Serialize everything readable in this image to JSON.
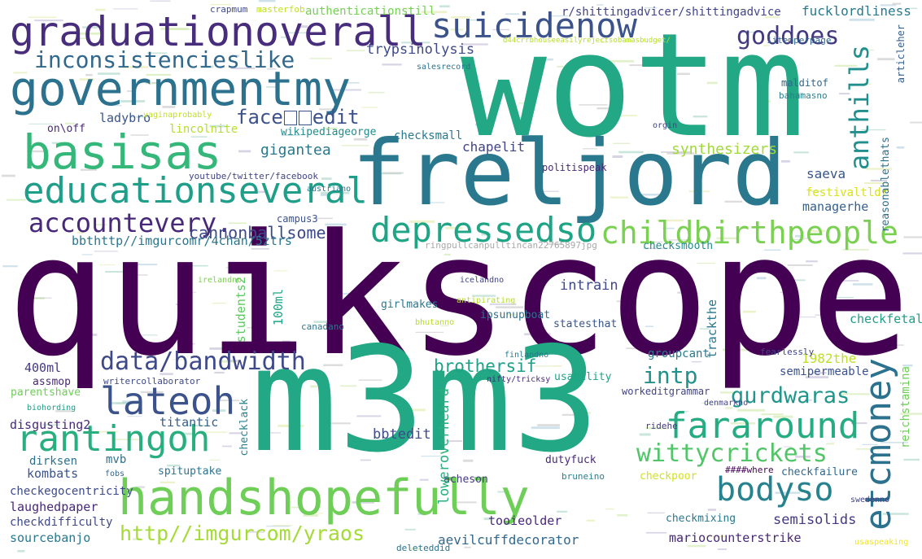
{
  "words": [
    {
      "id": "quikscope",
      "text": "quikscope",
      "color": "#440154"
    },
    {
      "id": "wotm",
      "text": "wotm",
      "color": "#22a884"
    },
    {
      "id": "m3m3",
      "text": "m3m3",
      "color": "#22a884"
    },
    {
      "id": "freljord",
      "text": "freljord",
      "color": "#2a788e"
    },
    {
      "id": "governmentmy",
      "text": "governmentmy",
      "color": "#2c728e"
    },
    {
      "id": "graduationoverall",
      "text": "graduationoverall",
      "color": "#472d7b"
    },
    {
      "id": "basisas",
      "text": "basisas",
      "color": "#35b779"
    },
    {
      "id": "handshopefully",
      "text": "handshopefully",
      "color": "#6ece58"
    },
    {
      "id": "educationseveral",
      "text": "educationseveral",
      "color": "#1f9e89"
    },
    {
      "id": "suicidenow",
      "text": "suicidenow",
      "color": "#3b528b"
    },
    {
      "id": "inconsistencieslike",
      "text": "inconsistencieslike",
      "color": "#31688e"
    },
    {
      "id": "accountevery",
      "text": "accountevery.",
      "color": "#482878"
    },
    {
      "id": "childbirthpeople",
      "text": "childbirthpeople",
      "color": "#7ad151"
    },
    {
      "id": "depressedso",
      "text": "depressedso",
      "color": "#20a486"
    },
    {
      "id": "fararound",
      "text": "fararound",
      "color": "#25ac82"
    },
    {
      "id": "lateoh",
      "text": "lateoh",
      "color": "#3b528b"
    },
    {
      "id": "rantingoh",
      "text": "rantingoh",
      "color": "#29af7f"
    },
    {
      "id": "wittycrickets",
      "text": "wittycrickets",
      "color": "#52c569"
    },
    {
      "id": "bodyso",
      "text": "bodyso",
      "color": "#26828e"
    },
    {
      "id": "etcmoney",
      "text": "etcmoney",
      "color": "#2c728e"
    },
    {
      "id": "databandwidth",
      "text": "data/bandwidth",
      "color": "#3e4989"
    },
    {
      "id": "anthills",
      "text": "anthills",
      "color": "#218f8d"
    },
    {
      "id": "goddoes",
      "text": "goddoes",
      "color": "#443983"
    },
    {
      "id": "faceedit",
      "text": "face\u0000\u0000edit",
      "color": "#3b528b"
    },
    {
      "id": "imgurlink",
      "text": "http//imgurcom/yraos",
      "color": "#a5db36"
    },
    {
      "id": "gurdwaras",
      "text": "gurdwaras",
      "color": "#1f968b"
    },
    {
      "id": "intp",
      "text": "intp",
      "color": "#21918c"
    },
    {
      "id": "brothersif",
      "text": "brothersif",
      "color": "#1fa188"
    },
    {
      "id": "cannonballsome",
      "text": "cannonballsome",
      "color": "#3e4989"
    },
    {
      "id": "gigantea",
      "text": "gigantea",
      "color": "#2a788e"
    },
    {
      "id": "bbthttp",
      "text": "bbthttp//imgurcomr/4chan/5ztrs",
      "color": "#2a768e"
    },
    {
      "id": "synthesizers",
      "text": "synthesizers",
      "color": "#a0da39"
    },
    {
      "id": "trypsinolysis",
      "text": "trypsinolysis",
      "color": "#3e4989"
    },
    {
      "id": "shittingadvice",
      "text": "r/shittingadvicer/shittingadvice",
      "color": "#414487"
    },
    {
      "id": "fucklordliness",
      "text": "fucklordliness",
      "color": "#2a788e"
    },
    {
      "id": "authenticationstill",
      "text": "authenticationstill",
      "color": "#75d054"
    },
    {
      "id": "ladybro",
      "text": "ladybro",
      "color": "#3b528b"
    },
    {
      "id": "lincolnite",
      "text": "lincolnite",
      "color": "#b5de2b"
    },
    {
      "id": "onoff",
      "text": "on\\off",
      "color": "#482878"
    },
    {
      "id": "wikipediageorge",
      "text": "wikipediageorge",
      "color": "#228c8d"
    },
    {
      "id": "checksmall",
      "text": "checksmall",
      "color": "#2a788e"
    },
    {
      "id": "chapelit",
      "text": "chapelit",
      "color": "#414487"
    },
    {
      "id": "saeva",
      "text": "saeva",
      "color": "#39558c"
    },
    {
      "id": "managerhe",
      "text": "managerhe",
      "color": "#355f8d"
    },
    {
      "id": "festivaltldr",
      "text": "festivaltldr",
      "color": "#d8e219"
    },
    {
      "id": "reasonablethats",
      "text": "reasonablethats",
      "color": "#2c728e"
    },
    {
      "id": "ringpull",
      "text": "ringpullcanpulltincan22765897jpg",
      "color": "#a8a8a8"
    },
    {
      "id": "checksmooth",
      "text": "checksmooth",
      "color": "#228c8d"
    },
    {
      "id": "malditof",
      "text": "malditof",
      "color": "#31688e"
    },
    {
      "id": "bahamasno",
      "text": "bahamasno",
      "color": "#26828e"
    },
    {
      "id": "1itemperpage",
      "text": "1itemperpage",
      "color": "#31688e"
    },
    {
      "id": "salesrecord",
      "text": "salesrecord",
      "color": "#2c728e"
    },
    {
      "id": "articleher",
      "text": "articleher",
      "color": "#355f8d"
    },
    {
      "id": "intrain",
      "text": "intrain",
      "color": "#3e4989"
    },
    {
      "id": "students2",
      "text": "students2",
      "color": "#5ec962"
    },
    {
      "id": "100ml",
      "text": "100ml",
      "color": "#20a486"
    },
    {
      "id": "girlmakes",
      "text": "girlmakes",
      "color": "#2a788e"
    },
    {
      "id": "ipsunupboat",
      "text": "ipsunupboat",
      "color": "#2c728e"
    },
    {
      "id": "statesthat",
      "text": "statesthat",
      "color": "#39568c"
    },
    {
      "id": "checkfetal",
      "text": "checkfetal",
      "color": "#1f9e89"
    },
    {
      "id": "groupcant",
      "text": "groupcant",
      "color": "#2a788e"
    },
    {
      "id": "1982the",
      "text": "1982the",
      "color": "#bddf26"
    },
    {
      "id": "semipermeable",
      "text": "semipermeable",
      "color": "#3b528b"
    },
    {
      "id": "reichstamina",
      "text": "reichstamina",
      "color": "#6ece58"
    },
    {
      "id": "400ml",
      "text": "400ml",
      "color": "#443983"
    },
    {
      "id": "assmop",
      "text": "assmop",
      "color": "#482878"
    },
    {
      "id": "writercollaborator",
      "text": "writercollaborator",
      "color": "#3e4989"
    },
    {
      "id": "parentshave",
      "text": "parentshave",
      "color": "#6ece58"
    },
    {
      "id": "disgusting2",
      "text": "disgusting2",
      "color": "#482878"
    },
    {
      "id": "titantic",
      "text": "titantic",
      "color": "#355f8d"
    },
    {
      "id": "bbtedit",
      "text": "bbtedit",
      "color": "#3e4989"
    },
    {
      "id": "usability",
      "text": "usability",
      "color": "#20a486"
    },
    {
      "id": "workeditgrammar",
      "text": "workeditgrammar",
      "color": "#414487"
    },
    {
      "id": "dirksen",
      "text": "dirksen",
      "color": "#2c728e"
    },
    {
      "id": "kombats",
      "text": "kombats",
      "color": "#3b528b"
    },
    {
      "id": "mvb",
      "text": "mvb",
      "color": "#2c728e"
    },
    {
      "id": "spituptake",
      "text": "spituptake",
      "color": "#2c728e"
    },
    {
      "id": "dutyfuck",
      "text": "dutyfuck",
      "color": "#482878"
    },
    {
      "id": "rideh",
      "text": "ridehe",
      "color": "#443983"
    },
    {
      "id": "whereword",
      "text": "####where",
      "color": "#440154"
    },
    {
      "id": "checkfailure",
      "text": "checkfailure",
      "color": "#31688e"
    },
    {
      "id": "checkpoor",
      "text": "checkpoor",
      "color": "#d2e21b"
    },
    {
      "id": "checkegocentricity",
      "text": "checkegocentricity",
      "color": "#3e4989"
    },
    {
      "id": "acheson",
      "text": "acheson",
      "color": "#443983"
    },
    {
      "id": "bruneino",
      "text": "bruneino",
      "color": "#26828e"
    },
    {
      "id": "laughedpaper",
      "text": "laughedpaper",
      "color": "#482878"
    },
    {
      "id": "checkdifficulty",
      "text": "checkdifficulty",
      "color": "#3e4989"
    },
    {
      "id": "sourcebanjo",
      "text": "sourcebanjo",
      "color": "#2a788e"
    },
    {
      "id": "tooieolder",
      "text": "tooieolder",
      "color": "#482878"
    },
    {
      "id": "aevilcuffdecorator",
      "text": "aevilcuffdecorator",
      "color": "#31688e"
    },
    {
      "id": "checkmixing",
      "text": "checkmixing",
      "color": "#2a788e"
    },
    {
      "id": "semisolids",
      "text": "semisolids",
      "color": "#443983"
    },
    {
      "id": "mariocounterstrike",
      "text": "mariocounterstrike",
      "color": "#482878"
    },
    {
      "id": "deleteddid",
      "text": "deleteddid",
      "color": "#2c728e"
    },
    {
      "id": "loweroverheard",
      "text": "loweroverheard",
      "color": "#29af7f"
    },
    {
      "id": "checklack",
      "text": "checklack",
      "color": "#26828e"
    },
    {
      "id": "trackthe",
      "text": "trackthe",
      "color": "#2a788e"
    },
    {
      "id": "campus3",
      "text": "campus3",
      "color": "#3b528b"
    },
    {
      "id": "youtube",
      "text": "youtube/twitter/facebook",
      "color": "#414487"
    },
    {
      "id": "politispeak",
      "text": "politispeak",
      "color": "#482878"
    },
    {
      "id": "orgin",
      "text": "orgin",
      "color": "#414487"
    },
    {
      "id": "biohording",
      "text": "biohording",
      "color": "#1f9e89"
    },
    {
      "id": "crapmum",
      "text": "crapmum",
      "color": "#3e4989"
    },
    {
      "id": "masterfob",
      "text": "masterfob",
      "color": "#c2df23"
    },
    {
      "id": "fearlessly",
      "text": "fearlessly",
      "color": "#414487"
    },
    {
      "id": "canadano",
      "text": "canadano",
      "color": "#2a788e"
    },
    {
      "id": "austriano",
      "text": "austriano",
      "color": "#2a788e"
    },
    {
      "id": "icelandno",
      "text": "icelandno",
      "color": "#414487"
    },
    {
      "id": "antipirating",
      "text": "antipirating",
      "color": "#b5de2b"
    },
    {
      "id": "finlandno",
      "text": "finlandno",
      "color": "#2a788e"
    },
    {
      "id": "bhutanno",
      "text": "bhutanno",
      "color": "#b5de2b"
    },
    {
      "id": "nifty",
      "text": "nifty/tricksy",
      "color": "#482878"
    },
    {
      "id": "denmarkno",
      "text": "denmarkno",
      "color": "#414487"
    },
    {
      "id": "swedenno",
      "text": "swedenno",
      "color": "#414487"
    },
    {
      "id": "irelandno",
      "text": "irelandno",
      "color": "#7ad151"
    },
    {
      "id": "vaginaprobably",
      "text": "vaginaprobably",
      "color": "#c2df23"
    },
    {
      "id": "fobs",
      "text": "fobs",
      "color": "#31688e"
    },
    {
      "id": "usaspeaking",
      "text": "usaspeaking",
      "color": "#f1e51d"
    },
    {
      "id": "urlsmall",
      "text": "d44crrbhouseeasilyrejectsobamasbudget/",
      "color": "#b5de2b"
    }
  ]
}
